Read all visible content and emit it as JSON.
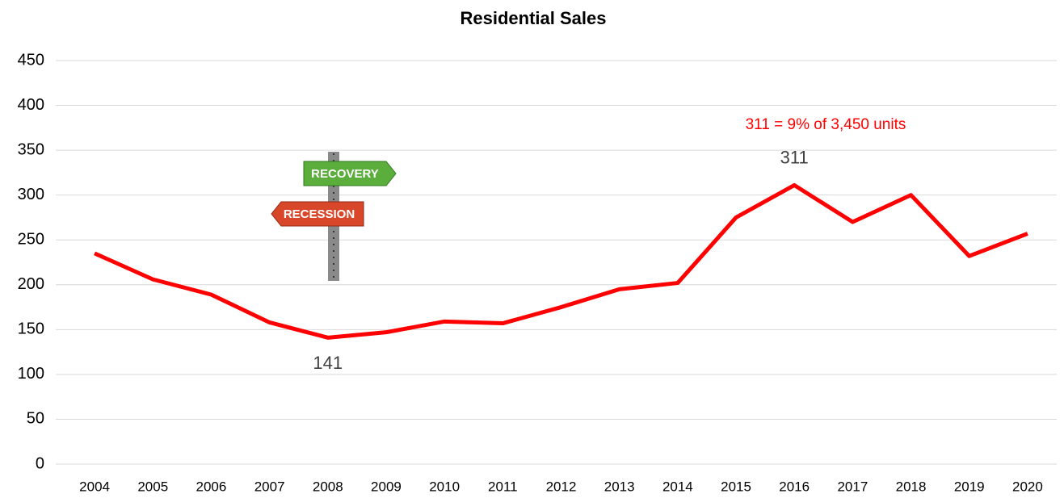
{
  "chart_data": {
    "type": "line",
    "title": "Residential Sales",
    "categories": [
      "2004",
      "2005",
      "2006",
      "2007",
      "2008",
      "2009",
      "2010",
      "2011",
      "2012",
      "2013",
      "2014",
      "2015",
      "2016",
      "2017",
      "2018",
      "2019",
      "2020"
    ],
    "series": [
      {
        "name": "Residential Sales",
        "color": "#ff0000",
        "values": [
          235,
          206,
          189,
          158,
          141,
          147,
          159,
          157,
          175,
          195,
          202,
          275,
          311,
          270,
          300,
          232,
          257
        ]
      }
    ],
    "value_labels": [
      null,
      null,
      null,
      null,
      "141",
      null,
      null,
      null,
      null,
      null,
      null,
      null,
      "311",
      null,
      null,
      null,
      null
    ],
    "ylim": [
      0,
      450
    ],
    "yticks": [
      0,
      50,
      100,
      150,
      200,
      250,
      300,
      350,
      400,
      450
    ],
    "grid": true,
    "annotation": "311 = 9% of 3,450 units",
    "annotation_color": "#ff0000",
    "sign_labels": [
      "RECOVERY",
      "RECESSION"
    ]
  }
}
